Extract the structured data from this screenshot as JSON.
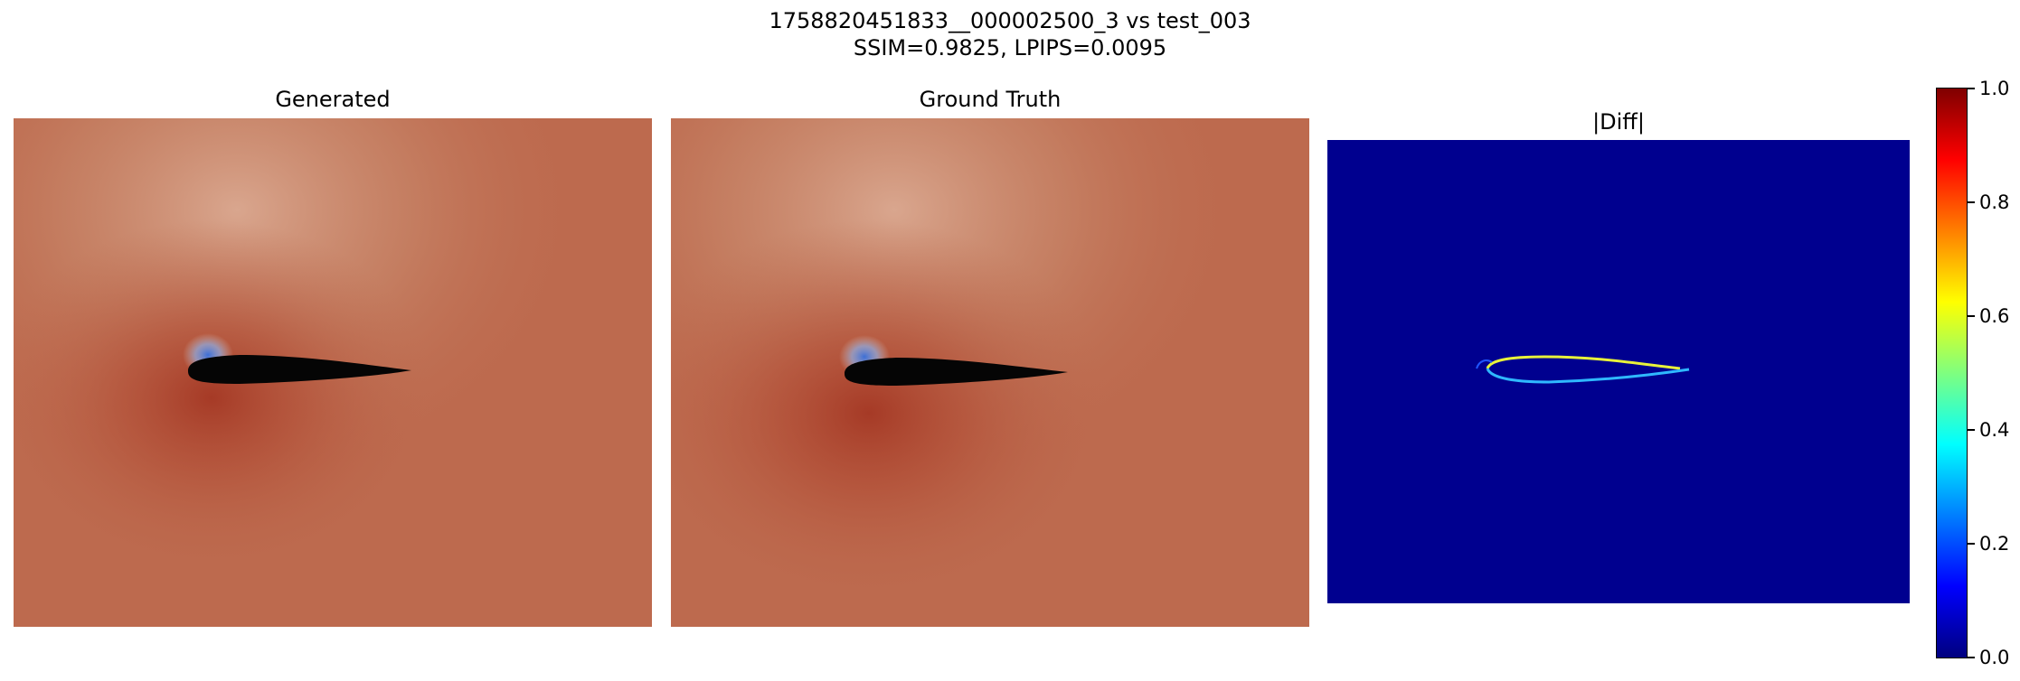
{
  "figure": {
    "title_line1": "1758820451833__000002500_3 vs test_003",
    "title_line2": "SSIM=0.9825, LPIPS=0.0095"
  },
  "panels": [
    {
      "title": "Generated",
      "background": "#bd6a4e"
    },
    {
      "title": "Ground Truth",
      "background": "#bd6a4e"
    },
    {
      "title": "|Diff|",
      "background": "#00008f"
    }
  ],
  "colorbar": {
    "colormap": "jet",
    "range": [
      0.0,
      1.0
    ],
    "ticks": [
      "0.0",
      "0.2",
      "0.4",
      "0.6",
      "0.8",
      "1.0"
    ]
  }
}
